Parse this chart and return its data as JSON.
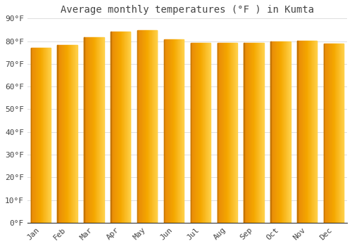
{
  "title": "Average monthly temperatures (°F ) in Kumta",
  "months": [
    "Jan",
    "Feb",
    "Mar",
    "Apr",
    "May",
    "Jun",
    "Jul",
    "Aug",
    "Sep",
    "Oct",
    "Nov",
    "Dec"
  ],
  "values": [
    77.2,
    78.4,
    81.7,
    84.3,
    84.7,
    80.8,
    79.3,
    79.2,
    79.3,
    79.8,
    80.3,
    78.8
  ],
  "bar_color_left": "#E8890A",
  "bar_color_mid": "#F5A800",
  "bar_color_right": "#FFD04A",
  "bar_border_color": "#C47400",
  "background_color": "#FFFFFF",
  "plot_bg_color": "#FFFFFF",
  "grid_color": "#DDDDDD",
  "text_color": "#444444",
  "ylim": [
    0,
    90
  ],
  "ytick_values": [
    0,
    10,
    20,
    30,
    40,
    50,
    60,
    70,
    80,
    90
  ],
  "ytick_labels": [
    "0°F",
    "10°F",
    "20°F",
    "30°F",
    "40°F",
    "50°F",
    "60°F",
    "70°F",
    "80°F",
    "90°F"
  ],
  "title_fontsize": 10,
  "tick_fontsize": 8,
  "font_family": "monospace",
  "bar_width": 0.75
}
